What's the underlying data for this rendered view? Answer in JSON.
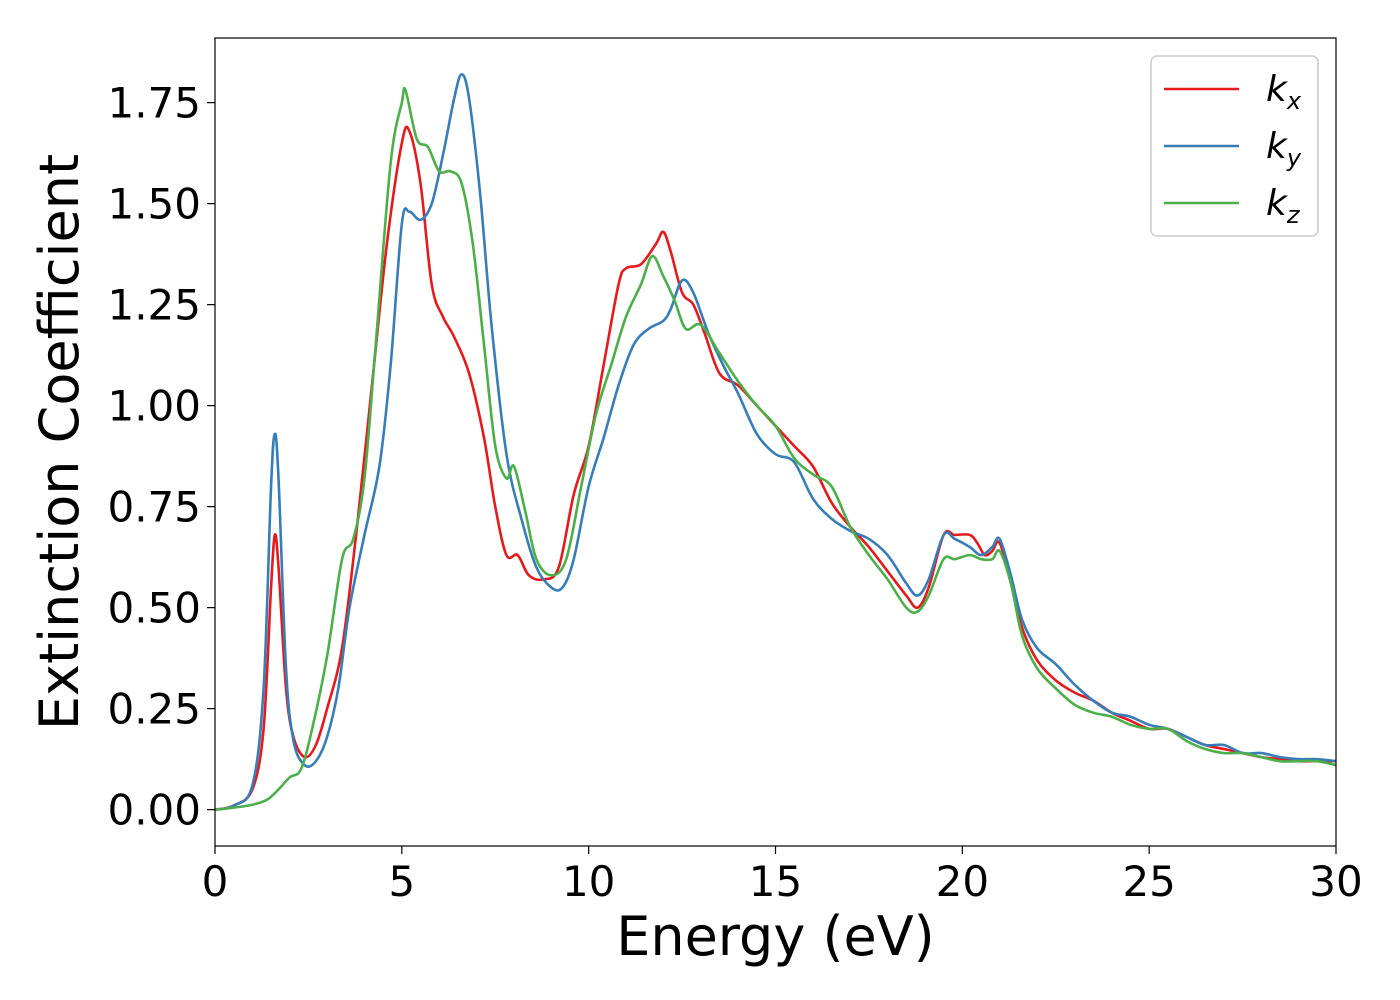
{
  "chart_data": {
    "type": "line",
    "xlabel": "Energy (eV)",
    "ylabel": "Extinction Coefficient",
    "xlim": [
      0,
      30
    ],
    "ylim": [
      -0.09,
      1.91
    ],
    "xticks": [
      0,
      5,
      10,
      15,
      20,
      25,
      30
    ],
    "xtick_labels": [
      "0",
      "5",
      "10",
      "15",
      "20",
      "25",
      "30"
    ],
    "yticks": [
      0.0,
      0.25,
      0.5,
      0.75,
      1.0,
      1.25,
      1.5,
      1.75
    ],
    "ytick_labels": [
      "0.00",
      "0.25",
      "0.50",
      "0.75",
      "1.00",
      "1.25",
      "1.50",
      "1.75"
    ],
    "grid": false,
    "legend_position": "top-right",
    "series": [
      {
        "name": "k",
        "subscript": "x",
        "color": "#e41a1c",
        "points": [
          [
            0,
            0
          ],
          [
            0.5,
            0.01
          ],
          [
            1.0,
            0.05
          ],
          [
            1.3,
            0.2
          ],
          [
            1.5,
            0.55
          ],
          [
            1.6,
            0.68
          ],
          [
            1.7,
            0.6
          ],
          [
            1.9,
            0.3
          ],
          [
            2.1,
            0.18
          ],
          [
            2.4,
            0.13
          ],
          [
            2.7,
            0.16
          ],
          [
            3.0,
            0.25
          ],
          [
            3.4,
            0.4
          ],
          [
            3.8,
            0.7
          ],
          [
            4.2,
            1.05
          ],
          [
            4.6,
            1.4
          ],
          [
            5.0,
            1.65
          ],
          [
            5.2,
            1.68
          ],
          [
            5.5,
            1.55
          ],
          [
            5.8,
            1.3
          ],
          [
            6.1,
            1.22
          ],
          [
            6.4,
            1.17
          ],
          [
            6.8,
            1.08
          ],
          [
            7.2,
            0.92
          ],
          [
            7.5,
            0.75
          ],
          [
            7.8,
            0.63
          ],
          [
            8.1,
            0.63
          ],
          [
            8.4,
            0.58
          ],
          [
            8.8,
            0.57
          ],
          [
            9.2,
            0.6
          ],
          [
            9.6,
            0.78
          ],
          [
            10.0,
            0.9
          ],
          [
            10.4,
            1.1
          ],
          [
            10.8,
            1.3
          ],
          [
            11.0,
            1.34
          ],
          [
            11.4,
            1.35
          ],
          [
            11.8,
            1.4
          ],
          [
            12.0,
            1.43
          ],
          [
            12.2,
            1.38
          ],
          [
            12.5,
            1.28
          ],
          [
            12.8,
            1.25
          ],
          [
            13.1,
            1.18
          ],
          [
            13.5,
            1.08
          ],
          [
            14.0,
            1.05
          ],
          [
            14.5,
            1.0
          ],
          [
            15.0,
            0.95
          ],
          [
            15.5,
            0.9
          ],
          [
            16.0,
            0.85
          ],
          [
            16.5,
            0.76
          ],
          [
            17.0,
            0.7
          ],
          [
            17.5,
            0.65
          ],
          [
            18.0,
            0.59
          ],
          [
            18.5,
            0.53
          ],
          [
            18.8,
            0.5
          ],
          [
            19.1,
            0.55
          ],
          [
            19.5,
            0.68
          ],
          [
            19.8,
            0.68
          ],
          [
            20.2,
            0.68
          ],
          [
            20.4,
            0.66
          ],
          [
            20.6,
            0.63
          ],
          [
            20.8,
            0.64
          ],
          [
            21.0,
            0.66
          ],
          [
            21.3,
            0.56
          ],
          [
            21.6,
            0.45
          ],
          [
            22.0,
            0.37
          ],
          [
            22.5,
            0.32
          ],
          [
            23.0,
            0.29
          ],
          [
            23.5,
            0.27
          ],
          [
            24.0,
            0.24
          ],
          [
            24.5,
            0.22
          ],
          [
            25.0,
            0.2
          ],
          [
            25.5,
            0.2
          ],
          [
            26.0,
            0.18
          ],
          [
            26.5,
            0.16
          ],
          [
            27.0,
            0.15
          ],
          [
            27.5,
            0.14
          ],
          [
            28.0,
            0.13
          ],
          [
            28.5,
            0.125
          ],
          [
            29.0,
            0.12
          ],
          [
            29.5,
            0.12
          ],
          [
            30.0,
            0.12
          ]
        ]
      },
      {
        "name": "k",
        "subscript": "y",
        "color": "#377eb8",
        "points": [
          [
            0,
            0
          ],
          [
            0.5,
            0.01
          ],
          [
            1.0,
            0.06
          ],
          [
            1.3,
            0.3
          ],
          [
            1.5,
            0.8
          ],
          [
            1.6,
            0.93
          ],
          [
            1.7,
            0.82
          ],
          [
            1.9,
            0.35
          ],
          [
            2.1,
            0.17
          ],
          [
            2.4,
            0.11
          ],
          [
            2.7,
            0.12
          ],
          [
            3.0,
            0.18
          ],
          [
            3.3,
            0.3
          ],
          [
            3.6,
            0.5
          ],
          [
            4.0,
            0.68
          ],
          [
            4.4,
            0.85
          ],
          [
            4.7,
            1.1
          ],
          [
            5.0,
            1.45
          ],
          [
            5.2,
            1.48
          ],
          [
            5.5,
            1.46
          ],
          [
            5.8,
            1.5
          ],
          [
            6.1,
            1.62
          ],
          [
            6.4,
            1.76
          ],
          [
            6.6,
            1.82
          ],
          [
            6.8,
            1.76
          ],
          [
            7.1,
            1.52
          ],
          [
            7.4,
            1.2
          ],
          [
            7.8,
            0.88
          ],
          [
            8.2,
            0.72
          ],
          [
            8.6,
            0.6
          ],
          [
            9.0,
            0.55
          ],
          [
            9.3,
            0.55
          ],
          [
            9.6,
            0.62
          ],
          [
            10.0,
            0.8
          ],
          [
            10.4,
            0.92
          ],
          [
            10.8,
            1.05
          ],
          [
            11.2,
            1.15
          ],
          [
            11.6,
            1.19
          ],
          [
            12.0,
            1.21
          ],
          [
            12.2,
            1.24
          ],
          [
            12.5,
            1.31
          ],
          [
            12.8,
            1.28
          ],
          [
            13.2,
            1.18
          ],
          [
            13.6,
            1.1
          ],
          [
            14.0,
            1.03
          ],
          [
            14.5,
            0.93
          ],
          [
            15.0,
            0.88
          ],
          [
            15.5,
            0.86
          ],
          [
            16.0,
            0.77
          ],
          [
            16.5,
            0.72
          ],
          [
            17.0,
            0.69
          ],
          [
            17.5,
            0.67
          ],
          [
            18.0,
            0.63
          ],
          [
            18.5,
            0.56
          ],
          [
            18.8,
            0.53
          ],
          [
            19.1,
            0.57
          ],
          [
            19.5,
            0.68
          ],
          [
            19.8,
            0.67
          ],
          [
            20.2,
            0.65
          ],
          [
            20.5,
            0.63
          ],
          [
            20.8,
            0.65
          ],
          [
            21.0,
            0.67
          ],
          [
            21.3,
            0.58
          ],
          [
            21.6,
            0.47
          ],
          [
            22.0,
            0.4
          ],
          [
            22.5,
            0.36
          ],
          [
            23.0,
            0.31
          ],
          [
            23.5,
            0.27
          ],
          [
            24.0,
            0.24
          ],
          [
            24.5,
            0.23
          ],
          [
            25.0,
            0.21
          ],
          [
            25.5,
            0.2
          ],
          [
            26.0,
            0.18
          ],
          [
            26.5,
            0.16
          ],
          [
            27.0,
            0.16
          ],
          [
            27.5,
            0.14
          ],
          [
            28.0,
            0.14
          ],
          [
            28.5,
            0.13
          ],
          [
            29.0,
            0.125
          ],
          [
            29.5,
            0.125
          ],
          [
            30.0,
            0.12
          ]
        ]
      },
      {
        "name": "k",
        "subscript": "z",
        "color": "#4daf4a",
        "points": [
          [
            0,
            0
          ],
          [
            0.5,
            0.005
          ],
          [
            1.0,
            0.012
          ],
          [
            1.4,
            0.025
          ],
          [
            1.7,
            0.05
          ],
          [
            2.0,
            0.08
          ],
          [
            2.3,
            0.1
          ],
          [
            2.6,
            0.2
          ],
          [
            3.0,
            0.38
          ],
          [
            3.4,
            0.62
          ],
          [
            3.7,
            0.67
          ],
          [
            4.0,
            0.82
          ],
          [
            4.3,
            1.15
          ],
          [
            4.7,
            1.6
          ],
          [
            5.0,
            1.75
          ],
          [
            5.1,
            1.78
          ],
          [
            5.4,
            1.66
          ],
          [
            5.7,
            1.64
          ],
          [
            6.0,
            1.58
          ],
          [
            6.3,
            1.58
          ],
          [
            6.6,
            1.55
          ],
          [
            6.9,
            1.4
          ],
          [
            7.2,
            1.15
          ],
          [
            7.5,
            0.9
          ],
          [
            7.8,
            0.82
          ],
          [
            8.0,
            0.85
          ],
          [
            8.3,
            0.74
          ],
          [
            8.6,
            0.62
          ],
          [
            9.0,
            0.58
          ],
          [
            9.4,
            0.62
          ],
          [
            9.8,
            0.8
          ],
          [
            10.2,
            0.98
          ],
          [
            10.6,
            1.1
          ],
          [
            11.0,
            1.22
          ],
          [
            11.4,
            1.3
          ],
          [
            11.7,
            1.37
          ],
          [
            12.0,
            1.32
          ],
          [
            12.3,
            1.26
          ],
          [
            12.6,
            1.19
          ],
          [
            13.0,
            1.2
          ],
          [
            13.5,
            1.13
          ],
          [
            14.0,
            1.06
          ],
          [
            14.5,
            1.0
          ],
          [
            15.0,
            0.95
          ],
          [
            15.5,
            0.87
          ],
          [
            16.0,
            0.83
          ],
          [
            16.5,
            0.8
          ],
          [
            17.0,
            0.7
          ],
          [
            17.5,
            0.63
          ],
          [
            18.0,
            0.57
          ],
          [
            18.5,
            0.5
          ],
          [
            18.8,
            0.49
          ],
          [
            19.1,
            0.53
          ],
          [
            19.5,
            0.62
          ],
          [
            19.8,
            0.62
          ],
          [
            20.2,
            0.63
          ],
          [
            20.5,
            0.62
          ],
          [
            20.8,
            0.62
          ],
          [
            21.0,
            0.64
          ],
          [
            21.3,
            0.56
          ],
          [
            21.6,
            0.43
          ],
          [
            22.0,
            0.35
          ],
          [
            22.5,
            0.3
          ],
          [
            23.0,
            0.26
          ],
          [
            23.5,
            0.24
          ],
          [
            24.0,
            0.23
          ],
          [
            24.5,
            0.21
          ],
          [
            25.0,
            0.2
          ],
          [
            25.5,
            0.2
          ],
          [
            26.0,
            0.17
          ],
          [
            26.5,
            0.15
          ],
          [
            27.0,
            0.14
          ],
          [
            27.5,
            0.14
          ],
          [
            28.0,
            0.13
          ],
          [
            28.5,
            0.12
          ],
          [
            29.0,
            0.12
          ],
          [
            29.5,
            0.12
          ],
          [
            30.0,
            0.11
          ]
        ]
      }
    ]
  }
}
